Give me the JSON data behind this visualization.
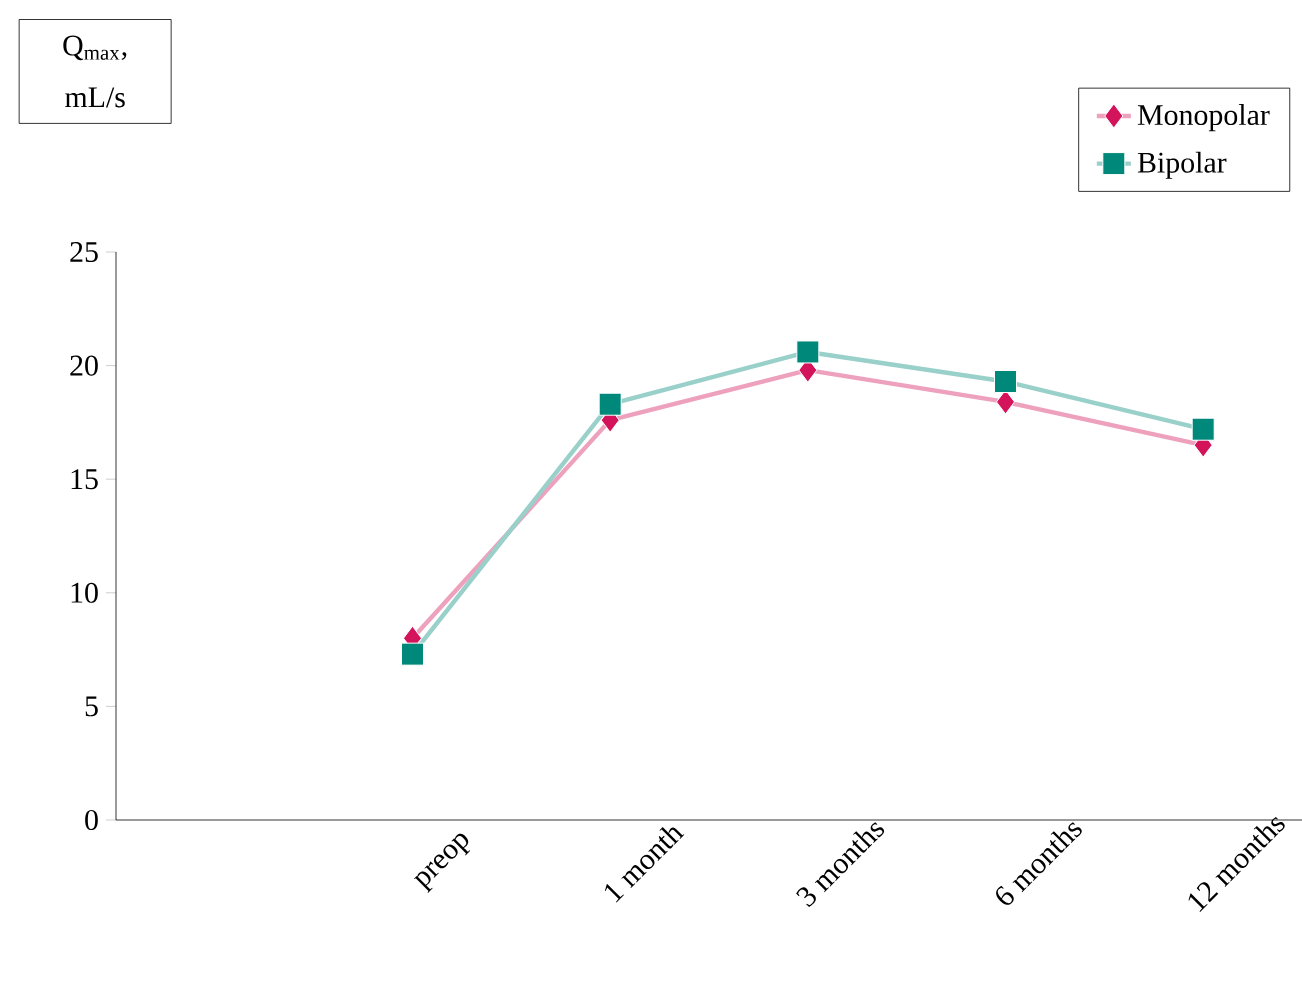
{
  "chart_data": {
    "type": "line",
    "ylabel": "Q$_{max}$, mL/s",
    "categories": [
      "preop",
      "1 month",
      "3 months",
      "6 months",
      "12 months"
    ],
    "series": [
      {
        "name": "Monopolar",
        "color": "#d4145a",
        "marker": "diamond",
        "values": [
          8.0,
          17.6,
          19.8,
          18.4,
          16.5
        ]
      },
      {
        "name": "Bipolar",
        "color": "#00897b",
        "marker": "square",
        "values": [
          7.3,
          18.3,
          20.6,
          19.3,
          17.2
        ]
      }
    ],
    "ylim": [
      0,
      25
    ],
    "yticks": [
      0,
      5,
      10,
      15,
      20,
      25
    ],
    "legend": "top right",
    "grid": false,
    "line_style": "solid"
  }
}
